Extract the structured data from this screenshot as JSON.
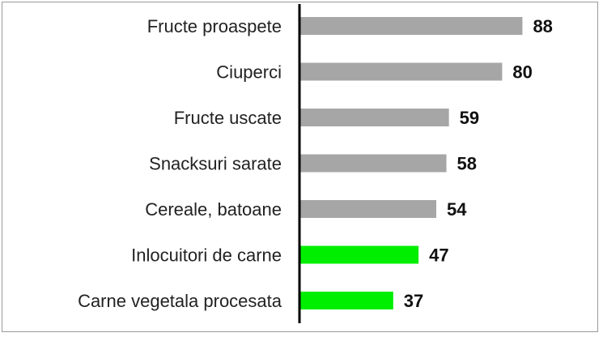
{
  "chart_data": {
    "type": "bar",
    "orientation": "horizontal",
    "categories": [
      "Fructe proaspete",
      "Ciuperci",
      "Fructe uscate",
      "Snacksuri sarate",
      "Cereale, batoane",
      "Inlocuitori de carne",
      "Carne vegetala procesata"
    ],
    "values": [
      88,
      80,
      59,
      58,
      54,
      47,
      37
    ],
    "bar_colors": [
      "#a6a6a6",
      "#a6a6a6",
      "#a6a6a6",
      "#a6a6a6",
      "#a6a6a6",
      "#00ee00",
      "#00ee00"
    ],
    "axis_color": "#000000",
    "xlim": [
      0,
      100
    ],
    "grid": false,
    "legend": "none",
    "title": "",
    "xlabel": "",
    "ylabel": ""
  }
}
